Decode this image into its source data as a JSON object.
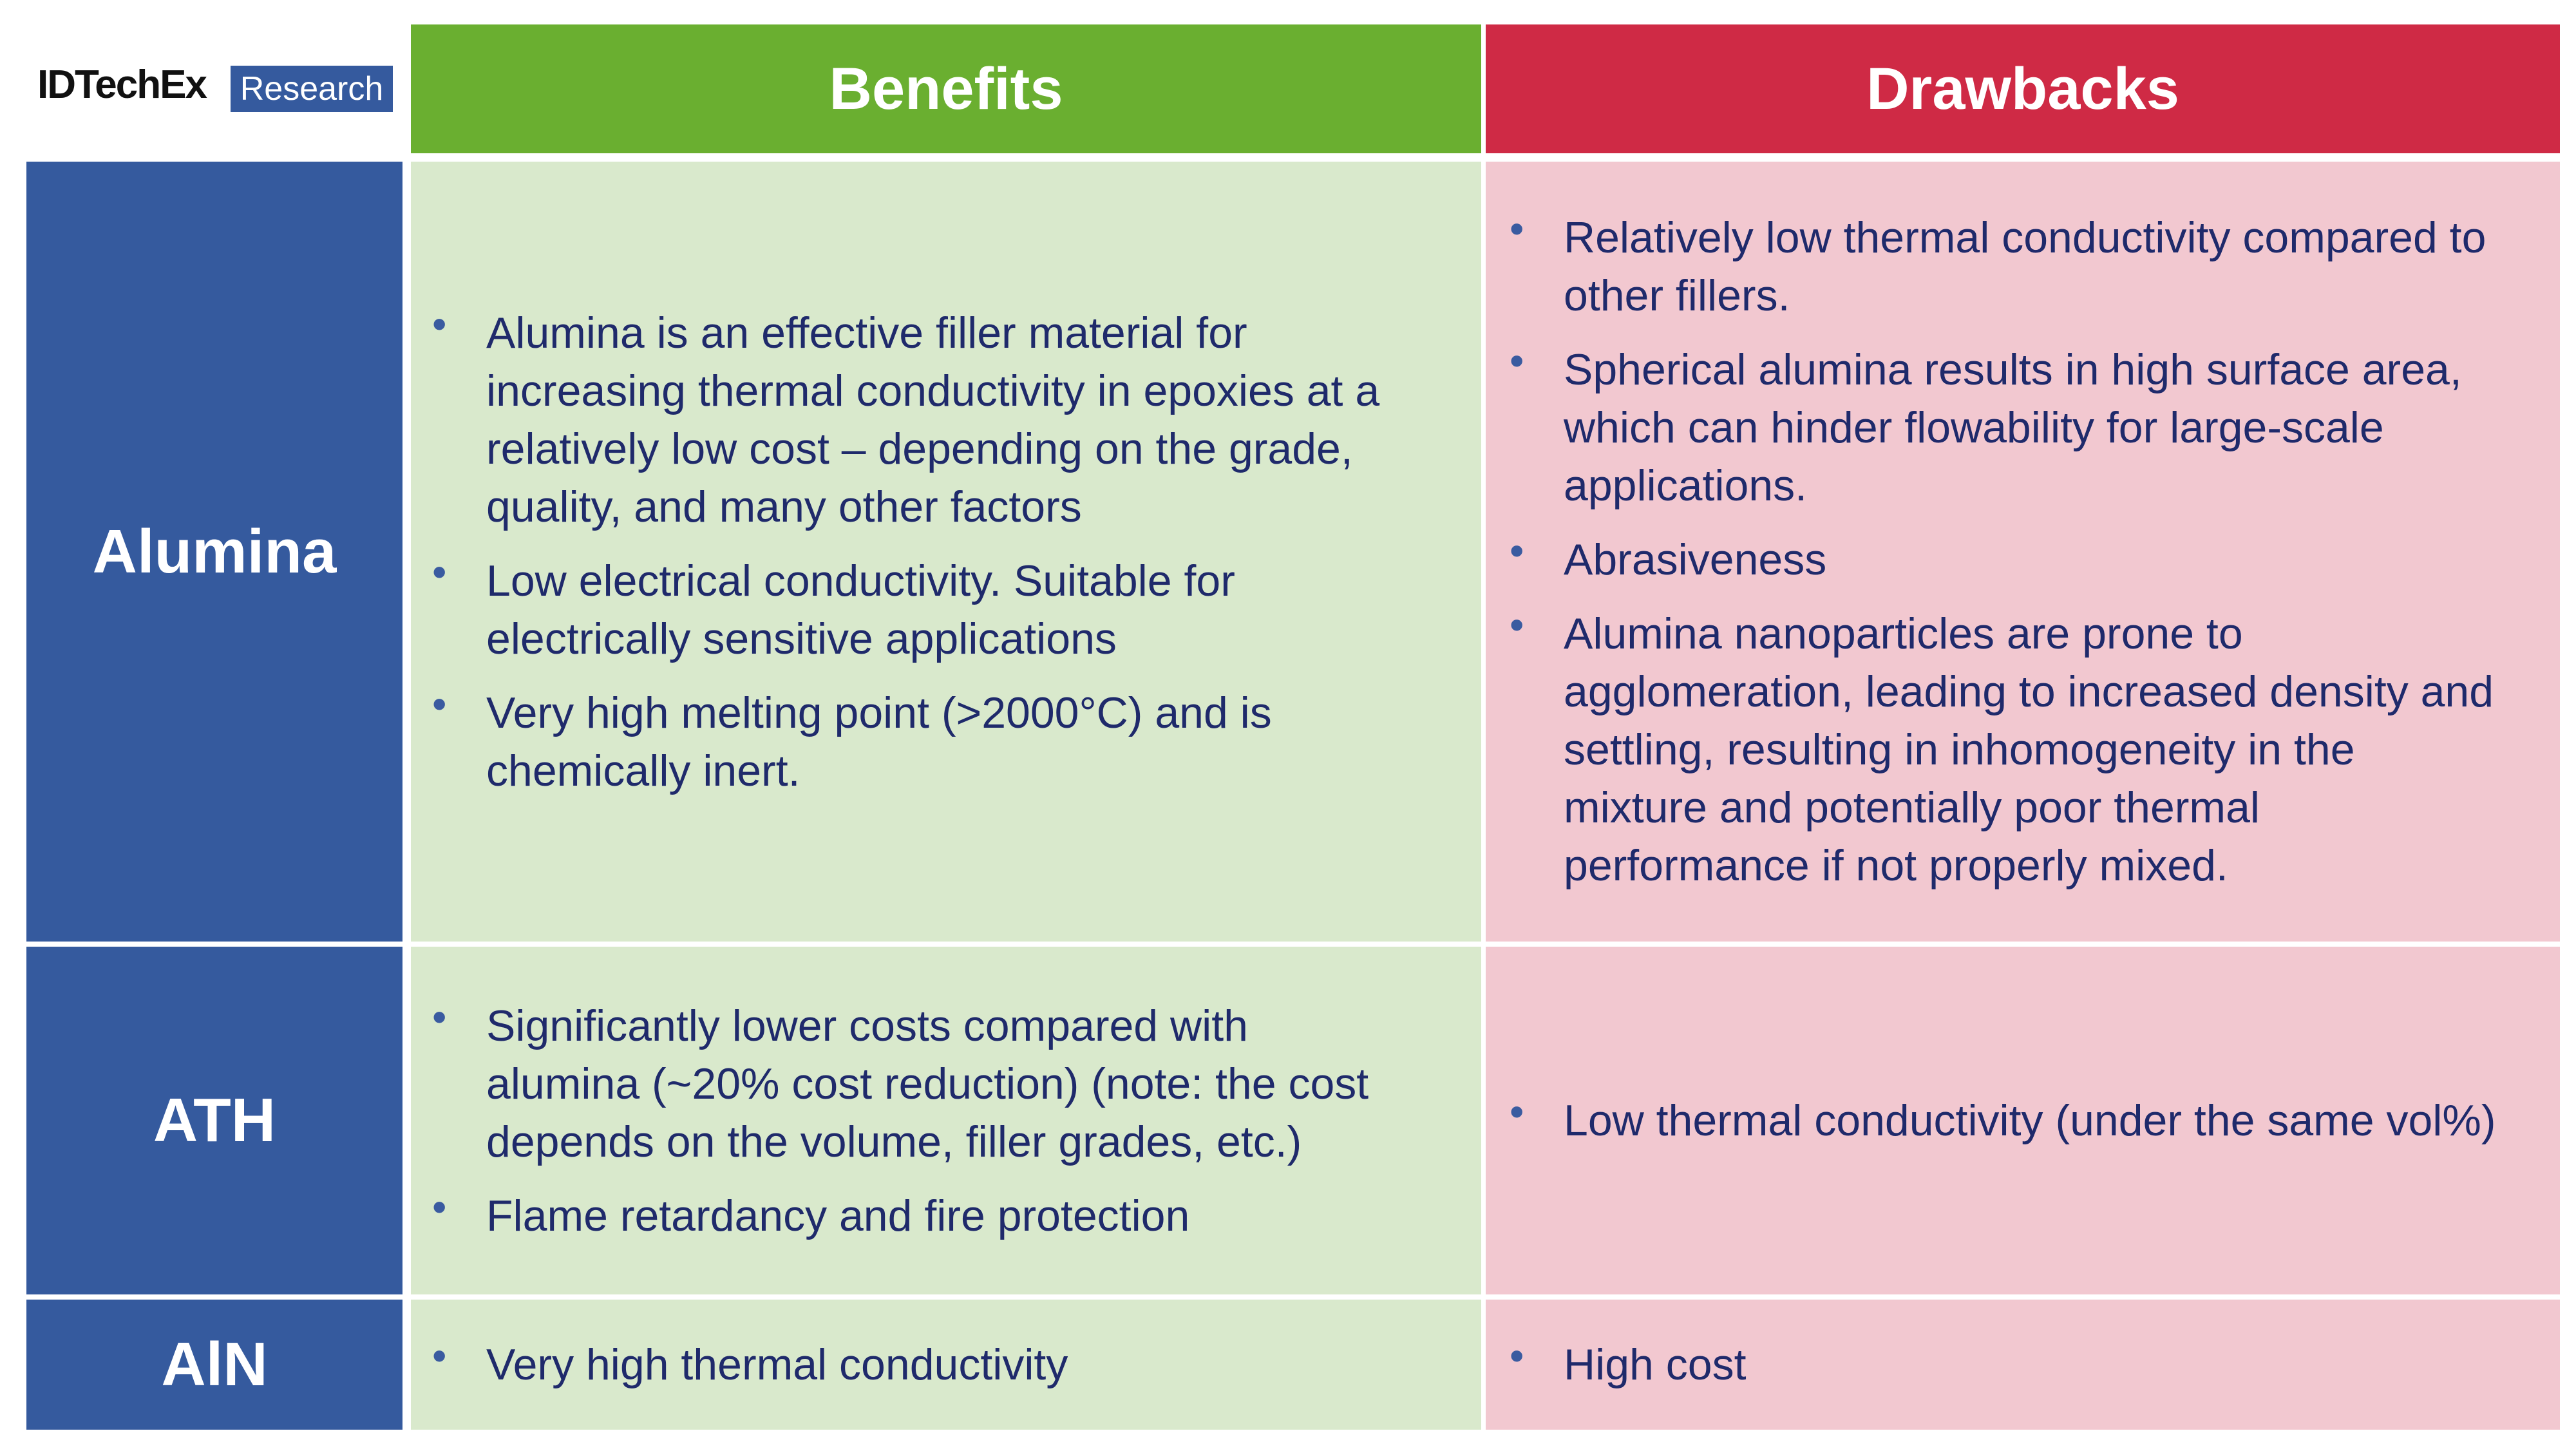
{
  "logo": {
    "brand": "IDTechEx",
    "tag": "Research"
  },
  "columns": [
    "Benefits",
    "Drawbacks"
  ],
  "rows": [
    {
      "label": "Alumina",
      "benefits": [
        "Alumina is an effective filler material for increasing thermal conductivity in epoxies at a relatively low cost – depending on the grade, quality, and many other factors",
        "Low electrical conductivity. Suitable for electrically sensitive applications",
        "Very high melting point (>2000°C) and is chemically inert."
      ],
      "drawbacks": [
        "Relatively low thermal conductivity compared to other fillers.",
        "Spherical alumina results in high surface area, which can hinder flowability for large-scale applications.",
        "Abrasiveness",
        "Alumina nanoparticles are prone to agglomeration, leading to increased density and settling, resulting in inhomogeneity in the mixture and potentially poor thermal performance if not properly mixed."
      ]
    },
    {
      "label": "ATH",
      "benefits": [
        "Significantly lower costs compared with alumina (~20% cost reduction) (note: the cost depends on the volume, filler grades, etc.)",
        "Flame retardancy and fire protection"
      ],
      "drawbacks": [
        "Low thermal conductivity (under the same vol%)"
      ]
    },
    {
      "label": "AlN",
      "benefits": [
        "Very high thermal conductivity"
      ],
      "drawbacks": [
        "High cost"
      ]
    }
  ]
}
